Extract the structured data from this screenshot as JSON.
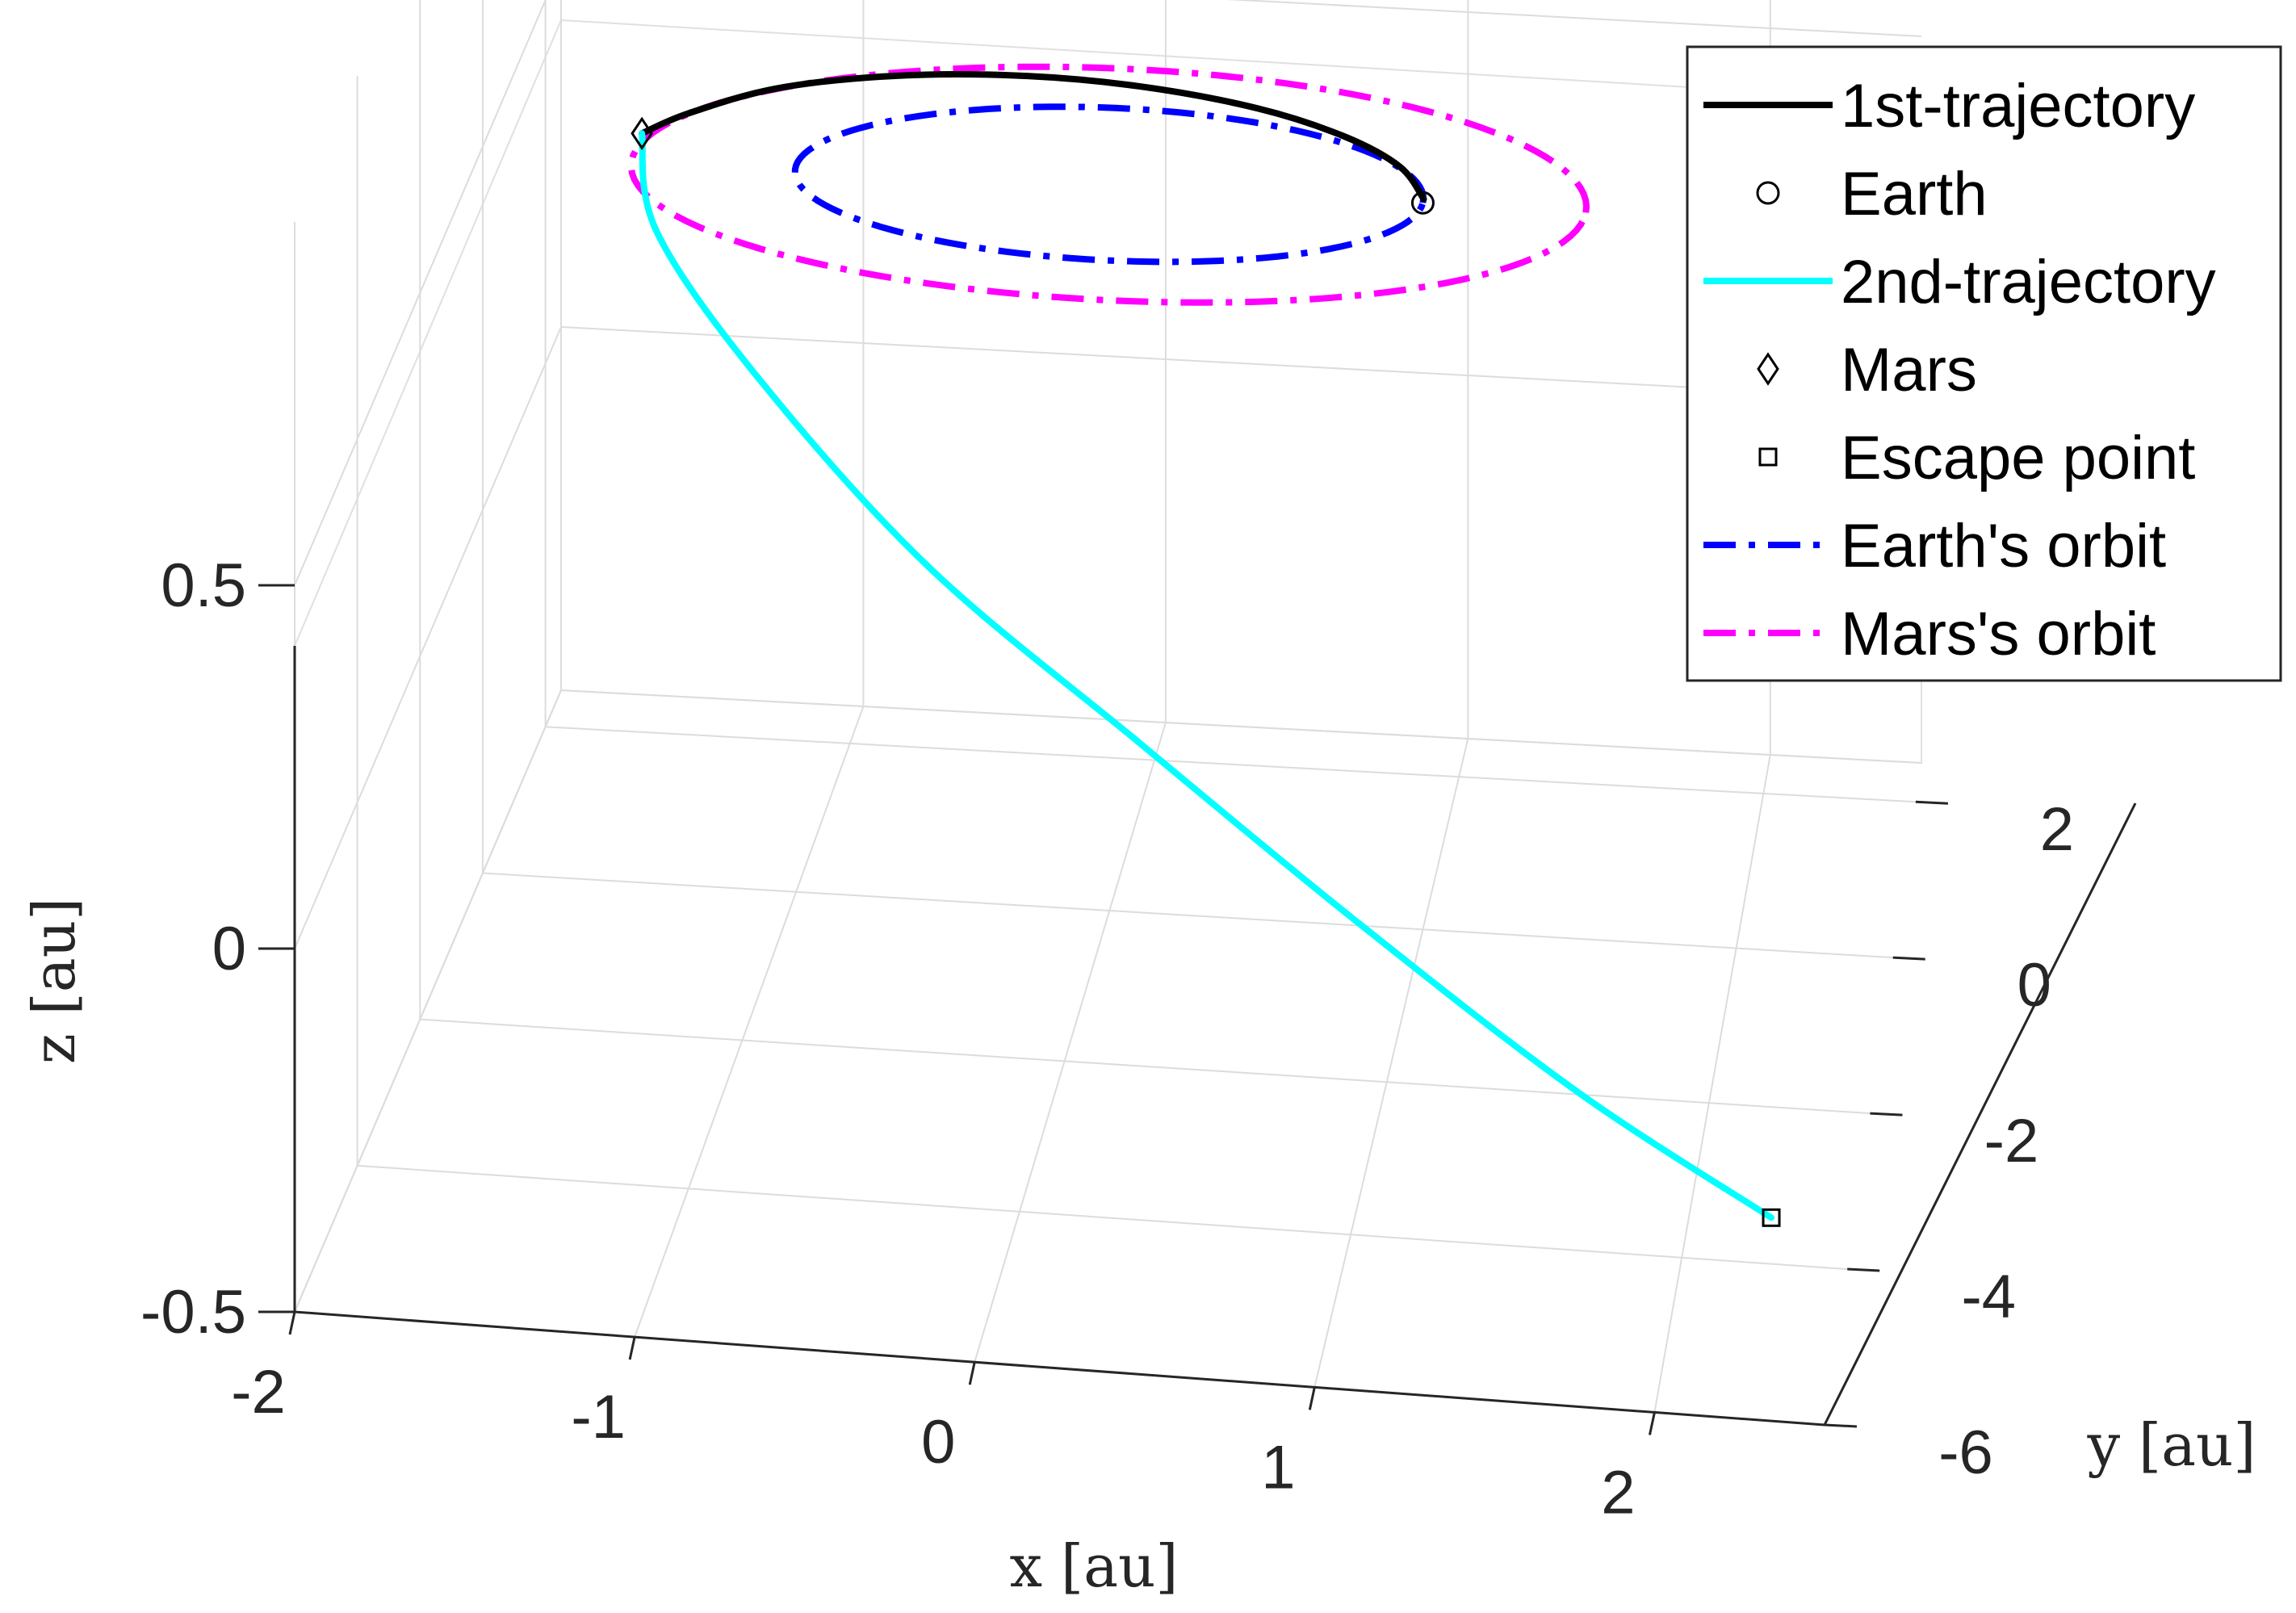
{
  "chart_data": {
    "type": "line",
    "title": "",
    "xlabel": "x [au]",
    "ylabel": "y [au]",
    "zlabel": "z [au]",
    "xlim": [
      -2,
      2.5
    ],
    "ylim": [
      -6,
      2.5
    ],
    "zlim": [
      -0.5,
      1
    ],
    "x_ticks": [
      -2,
      -1,
      0,
      1,
      2
    ],
    "y_ticks": [
      -6,
      -4,
      -2,
      0,
      2
    ],
    "z_ticks": [
      -0.5,
      0,
      0.5
    ],
    "x_tick_labels": [
      "-2",
      "-1",
      "0",
      "1",
      "2"
    ],
    "y_tick_labels": [
      "-6",
      "-4",
      "-2",
      "0",
      "2"
    ],
    "z_tick_labels": [
      "-0.5",
      "0",
      "0.5"
    ],
    "grid": true,
    "legend_position": "top-right",
    "colors": {
      "first_trajectory": "#000000",
      "second_trajectory": "#00ffff",
      "earth_orbit": "#0000ff",
      "mars_orbit": "#ff00ff",
      "grid": "#dcdcdc",
      "axis": "#262626"
    },
    "series": [
      {
        "name": "1st-trajectory",
        "style": "solid",
        "x": [
          1.0,
          0.9,
          0.7,
          0.4,
          0.0,
          -0.4,
          -0.8,
          -1.15,
          -1.4,
          -1.52
        ],
        "y": [
          0.05,
          0.45,
          0.8,
          1.1,
          1.3,
          1.35,
          1.25,
          1.0,
          0.6,
          0.3
        ],
        "z": [
          0.5,
          0.5,
          0.5,
          0.5,
          0.5,
          0.5,
          0.5,
          0.5,
          0.5,
          0.5
        ]
      },
      {
        "name": "Earth",
        "marker": "circle",
        "x": [
          1.0
        ],
        "y": [
          0.0
        ],
        "z": [
          0.5
        ]
      },
      {
        "name": "2nd-trajectory",
        "style": "solid",
        "x": [
          -1.52,
          -1.4,
          -1.0,
          -0.4,
          0.3,
          1.0,
          1.7,
          2.3
        ],
        "y": [
          0.3,
          -0.5,
          -1.4,
          -2.3,
          -3.0,
          -3.7,
          -4.3,
          -4.8
        ],
        "z": [
          0.5,
          0.45,
          0.35,
          0.2,
          0.05,
          -0.1,
          -0.25,
          -0.35
        ]
      },
      {
        "name": "Mars",
        "marker": "diamond",
        "x": [
          -1.52
        ],
        "y": [
          0.3
        ],
        "z": [
          0.5
        ]
      },
      {
        "name": "Escape point",
        "marker": "square",
        "x": [
          2.3
        ],
        "y": [
          -4.8
        ],
        "z": [
          -0.35
        ]
      },
      {
        "name": "Earth's orbit",
        "style": "dashdot",
        "radius": 1.0,
        "center": [
          0,
          0
        ],
        "z": 0.5
      },
      {
        "name": "Mars's orbit",
        "style": "dashdot",
        "radius": 1.52,
        "center": [
          0,
          0
        ],
        "z": 0.5
      }
    ]
  }
}
